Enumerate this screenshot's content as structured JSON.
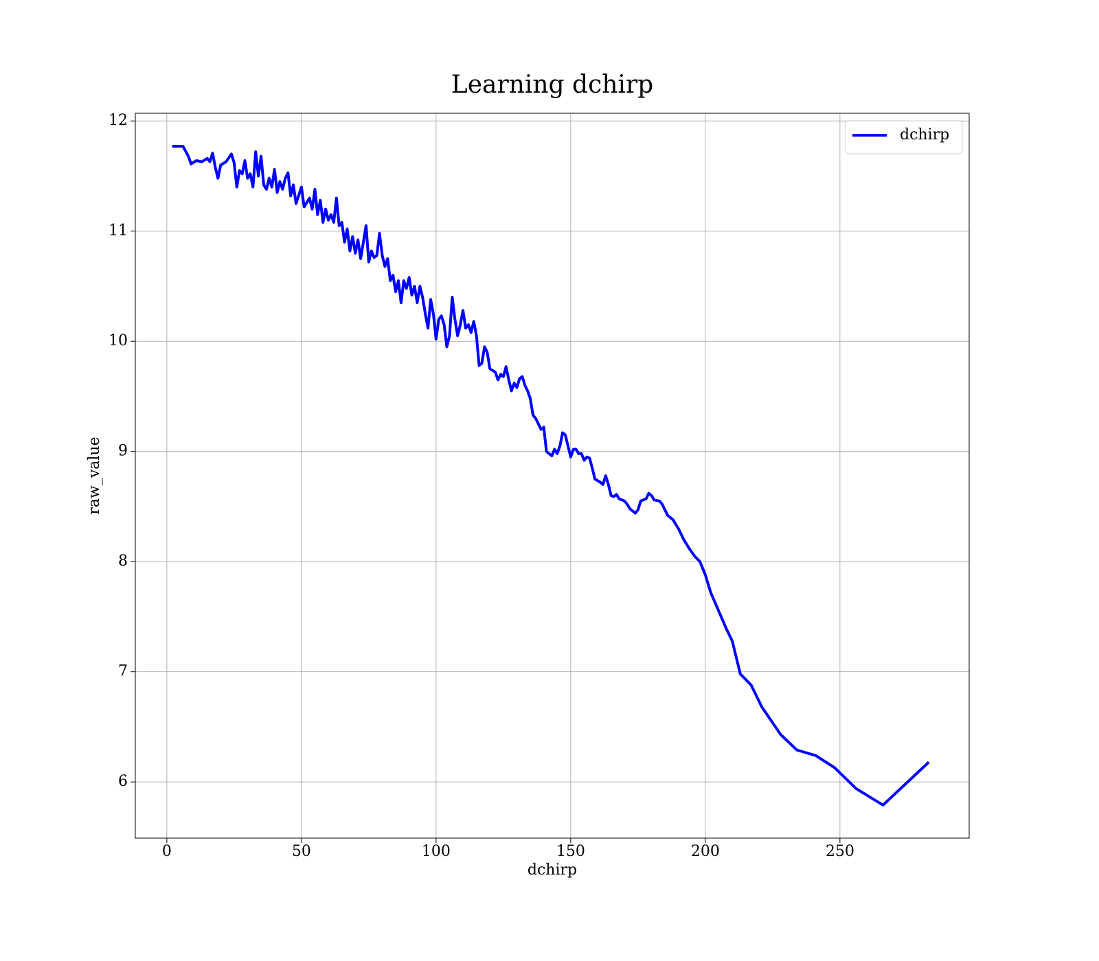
{
  "chart_data": {
    "type": "line",
    "title": "Learning dchirp",
    "xlabel": "dchirp",
    "ylabel": "raw_value",
    "x": [
      2,
      6,
      8,
      9,
      11,
      13,
      15,
      16,
      17,
      18,
      19,
      20,
      22,
      24,
      25,
      26,
      27,
      28,
      29,
      30,
      31,
      32,
      33,
      34,
      35,
      36,
      37,
      38,
      39,
      40,
      41,
      42,
      43,
      44,
      45,
      46,
      47,
      48,
      50,
      51,
      53,
      54,
      55,
      56,
      57,
      58,
      59,
      60,
      61,
      62,
      63,
      64,
      65,
      66,
      67,
      68,
      69,
      70,
      71,
      72,
      73,
      74,
      75,
      76,
      77,
      78,
      79,
      80,
      81,
      82,
      83,
      84,
      85,
      86,
      87,
      88,
      89,
      90,
      91,
      92,
      93,
      94,
      95,
      96,
      97,
      98,
      99,
      100,
      101,
      102,
      103,
      104,
      105,
      106,
      107,
      108,
      109,
      110,
      111,
      112,
      113,
      114,
      115,
      116,
      117,
      118,
      119,
      120,
      122,
      123,
      124,
      125,
      126,
      127,
      128,
      129,
      130,
      131,
      132,
      133,
      134,
      135,
      136,
      137,
      138,
      139,
      140,
      141,
      142,
      143,
      144,
      145,
      146,
      147,
      148,
      149,
      150,
      151,
      152,
      153,
      154,
      155,
      156,
      157,
      158,
      159,
      161,
      162,
      163,
      164,
      165,
      166,
      167,
      168,
      170,
      171,
      172,
      173,
      174,
      175,
      176,
      178,
      179,
      180,
      181,
      183,
      184,
      186,
      188,
      190,
      192,
      194,
      196,
      198,
      200,
      202,
      205,
      208,
      210,
      213,
      217,
      221,
      228,
      234,
      241,
      248,
      256,
      266,
      283
    ],
    "series": [
      {
        "name": "dchirp",
        "color": "#0000ff",
        "values": [
          11.77,
          11.77,
          11.68,
          11.61,
          11.64,
          11.63,
          11.66,
          11.63,
          11.71,
          11.58,
          11.48,
          11.6,
          11.63,
          11.7,
          11.62,
          11.4,
          11.55,
          11.52,
          11.64,
          11.48,
          11.52,
          11.4,
          11.72,
          11.5,
          11.68,
          11.42,
          11.38,
          11.48,
          11.4,
          11.56,
          11.35,
          11.45,
          11.38,
          11.48,
          11.53,
          11.32,
          11.42,
          11.25,
          11.4,
          11.22,
          11.3,
          11.2,
          11.38,
          11.15,
          11.28,
          11.08,
          11.2,
          11.1,
          11.15,
          11.08,
          11.3,
          11.05,
          11.08,
          10.9,
          11.02,
          10.82,
          10.95,
          10.8,
          10.92,
          10.75,
          10.9,
          11.05,
          10.72,
          10.82,
          10.76,
          10.78,
          10.98,
          10.78,
          10.68,
          10.75,
          10.55,
          10.6,
          10.45,
          10.55,
          10.35,
          10.55,
          10.48,
          10.58,
          10.42,
          10.5,
          10.35,
          10.5,
          10.4,
          10.25,
          10.12,
          10.38,
          10.25,
          10.02,
          10.2,
          10.23,
          10.15,
          9.95,
          10.05,
          10.4,
          10.2,
          10.05,
          10.15,
          10.28,
          10.12,
          10.15,
          10.08,
          10.18,
          10.05,
          9.78,
          9.8,
          9.95,
          9.9,
          9.75,
          9.72,
          9.65,
          9.7,
          9.68,
          9.77,
          9.65,
          9.55,
          9.62,
          9.58,
          9.66,
          9.68,
          9.6,
          9.55,
          9.48,
          9.33,
          9.3,
          9.25,
          9.2,
          9.22,
          9.0,
          8.98,
          8.96,
          9.02,
          8.98,
          9.05,
          9.17,
          9.15,
          9.05,
          8.95,
          9.02,
          9.02,
          8.98,
          8.98,
          8.92,
          8.95,
          8.94,
          8.85,
          8.75,
          8.72,
          8.7,
          8.78,
          8.7,
          8.6,
          8.59,
          8.61,
          8.57,
          8.55,
          8.52,
          8.48,
          8.46,
          8.44,
          8.47,
          8.55,
          8.57,
          8.62,
          8.6,
          8.56,
          8.55,
          8.52,
          8.42,
          8.38,
          8.3,
          8.2,
          8.12,
          8.05,
          8.0,
          7.88,
          7.72,
          7.55,
          7.38,
          7.28,
          6.98,
          6.88,
          6.68,
          6.43,
          6.29,
          6.24,
          6.13,
          5.94,
          5.79,
          6.18
        ]
      }
    ],
    "xlim": [
      -11.7,
      298
    ],
    "xticks": [
      0,
      50,
      100,
      150,
      200,
      250
    ],
    "ylim": [
      5.49,
      12.07
    ],
    "yticks": [
      6,
      7,
      8,
      9,
      10,
      11,
      12
    ],
    "grid": true,
    "legend": "upper right"
  }
}
